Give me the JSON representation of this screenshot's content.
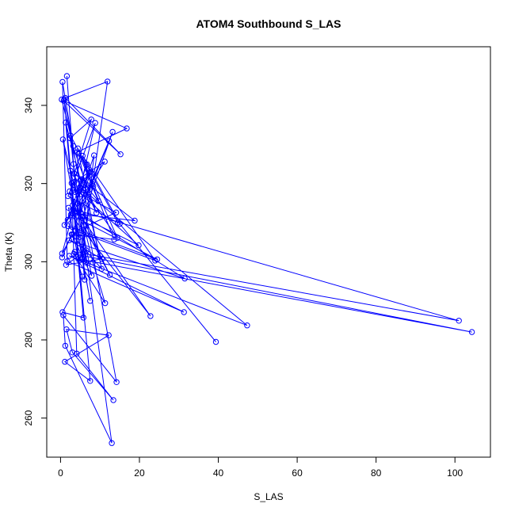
{
  "chart_data": {
    "type": "line",
    "title": "ATOM4 Southbound S_LAS",
    "xlabel": "S_LAS",
    "ylabel": "Theta (K)",
    "xlim": [
      -3.5,
      109
    ],
    "ylim": [
      250,
      355
    ],
    "xticks": [
      0,
      20,
      40,
      60,
      80,
      100
    ],
    "yticks": [
      260,
      280,
      300,
      320,
      340
    ],
    "grid": false,
    "legend": "none",
    "marker": "open-circle",
    "color": "#0000ff",
    "series": [
      {
        "x": [
          1.6,
          3.3,
          13.0,
          1.2,
          0.7,
          14.2,
          0.9,
          7.5,
          1.1,
          12.2,
          1.5,
          3.0,
          13.4,
          4.1,
          2.8,
          10.0,
          1.3,
          5.8,
          0.5,
          5.5,
          3.6,
          101.0,
          2.0,
          4.5,
          104.3,
          3.4,
          11.3,
          8.2,
          0.6,
          4.8,
          1.9,
          24.5,
          2.6,
          22.8,
          3.1,
          7.5,
          2.3,
          12.5,
          3.9,
          31.5,
          2.2,
          10.5,
          1.4,
          6.5,
          5.4,
          11.9,
          1.2,
          15.2,
          0.8,
          16.8,
          4.2,
          6.1,
          2.5,
          14.5,
          1.9,
          8.8,
          5.0,
          8.3,
          3.5,
          7.8,
          2.4,
          9.1,
          5.1,
          9.6,
          4.6,
          10.4,
          2.8,
          7.9,
          4.7,
          12.3,
          0.4,
          13.2,
          5.7,
          6.4,
          3.5,
          11.2,
          1.0,
          7.3,
          3.8,
          8.0,
          4.9,
          7.6,
          1.8,
          6.7,
          5.5,
          8.5,
          5.2,
          19.8,
          3.7,
          18.8,
          2.5,
          14.4,
          4.4,
          13.6,
          3.0,
          0.4,
          4.9,
          47.3,
          2.2,
          31.3,
          1.7,
          0.5,
          3.2,
          0.3
        ],
        "y": [
          347.5,
          325.0,
          253.6,
          278.5,
          286.3,
          269.2,
          341.5,
          269.5,
          274.4,
          281.2,
          282.7,
          276.8,
          264.6,
          276.5,
          320.1,
          301.5,
          335.6,
          285.7,
          287.1,
          296.2,
          302.5,
          284.9,
          313.8,
          300.7,
          282.0,
          302.0,
          289.4,
          299.8,
          331.3,
          306.3,
          309.1,
          300.6,
          312.0,
          286.1,
          314.5,
          290.0,
          318.0,
          296.6,
          313.0,
          295.7,
          305.5,
          300.7,
          299.2,
          302.9,
          300.9,
          346.1,
          341.9,
          327.5,
          341.2,
          334.1,
          328.0,
          295.4,
          332.3,
          310.0,
          316.8,
          335.5,
          318.9,
          319.3,
          322.5,
          336.4,
          331.6,
          312.5,
          321.1,
          315.5,
          327.7,
          298.2,
          307.0,
          296.4,
          313.0,
          330.9,
          301.1,
          333.2,
          311.6,
          299.8,
          320.4,
          325.6,
          309.4,
          322.8,
          317.8,
          320.0,
          313.9,
          323.0,
          310.7,
          324.9,
          300.7,
          327.2,
          317.3,
          304.2,
          312.3,
          310.5,
          323.3,
          306.1,
          329.0,
          305.7,
          306.9,
          302.1,
          319.1,
          283.7,
          301.5,
          287.1,
          300.1,
          346.0,
          329.6,
          341.5
        ]
      },
      {
        "x": [
          39.4,
          15.0,
          5.6,
          24.0,
          3.9,
          14.1,
          3.2
        ],
        "y": [
          279.5,
          309.7,
          327.1,
          300.3,
          307.9,
          312.6,
          318.4
        ]
      }
    ]
  }
}
